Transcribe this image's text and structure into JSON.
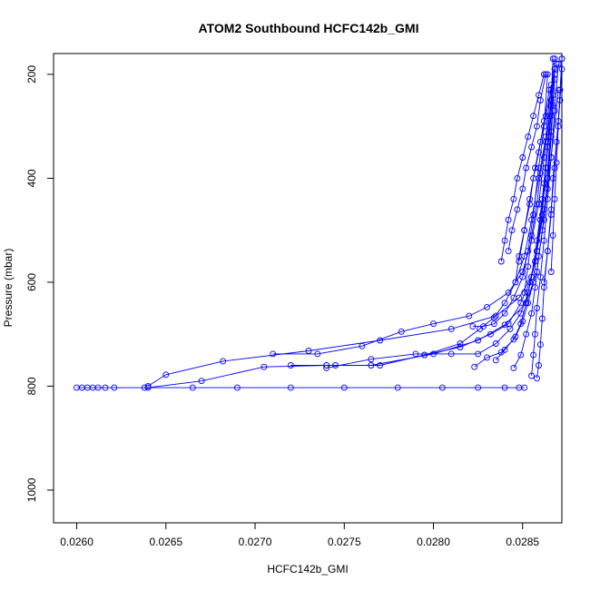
{
  "chart_data": {
    "type": "line",
    "title": "ATOM2 Southbound HCFC142b_GMI",
    "xlabel": "HCFC142b_GMI",
    "ylabel": "Pressure (mbar)",
    "xlim": [
      0.02587,
      0.02872
    ],
    "ylim": [
      1063,
      160
    ],
    "y_reversed": true,
    "x_ticks": [
      "0.0260",
      "0.0265",
      "0.0270",
      "0.0275",
      "0.0280",
      "0.0285"
    ],
    "x_tick_values": [
      0.026,
      0.0265,
      0.027,
      0.0275,
      0.028,
      0.0285
    ],
    "y_ticks": [
      "200",
      "400",
      "600",
      "800",
      "1000"
    ],
    "y_tick_values": [
      200,
      400,
      600,
      800,
      1000
    ],
    "marker": "open-circle",
    "color": "#0000ff",
    "series": [
      {
        "x": [
          0.026,
          0.02603,
          0.02606,
          0.02609,
          0.02612,
          0.02616,
          0.02621,
          0.02638,
          0.02665,
          0.0269,
          0.0272,
          0.0275,
          0.0278,
          0.02805,
          0.02825,
          0.0284,
          0.02848,
          0.02851
        ],
        "y": [
          803,
          803,
          803,
          803,
          803,
          803,
          803,
          803,
          803,
          803,
          803,
          803,
          803,
          803,
          803,
          803,
          803,
          803
        ]
      },
      {
        "x": [
          0.0264,
          0.0265,
          0.02682,
          0.0273,
          0.0277,
          0.0281,
          0.02835,
          0.02848,
          0.02855,
          0.02858,
          0.0286,
          0.02862,
          0.02864,
          0.02866,
          0.02867
        ],
        "y": [
          800,
          778,
          752,
          732,
          712,
          690,
          665,
          630,
          590,
          540,
          480,
          410,
          330,
          250,
          170
        ]
      },
      {
        "x": [
          0.0264,
          0.0267,
          0.02705,
          0.0274,
          0.02765,
          0.028,
          0.02825,
          0.0284,
          0.02852,
          0.02858,
          0.02861,
          0.02864,
          0.02866,
          0.02868
        ],
        "y": [
          803,
          790,
          763,
          760,
          760,
          738,
          712,
          682,
          640,
          580,
          500,
          420,
          320,
          200
        ]
      },
      {
        "x": [
          0.0271,
          0.02735,
          0.0276,
          0.02782,
          0.028,
          0.0282,
          0.0283,
          0.02842,
          0.0285,
          0.02855,
          0.02859,
          0.02862,
          0.02865,
          0.02868
        ],
        "y": [
          738,
          738,
          723,
          695,
          680,
          665,
          648,
          620,
          580,
          520,
          450,
          360,
          280,
          170
        ]
      },
      {
        "x": [
          0.0272,
          0.02745,
          0.0277,
          0.02795,
          0.02815,
          0.02832,
          0.02842,
          0.02849,
          0.02854,
          0.02858,
          0.02862,
          0.02866,
          0.0287
        ],
        "y": [
          760,
          760,
          760,
          740,
          725,
          700,
          680,
          640,
          600,
          540,
          460,
          360,
          230
        ]
      },
      {
        "x": [
          0.0274,
          0.02765,
          0.0279,
          0.0281,
          0.02825,
          0.02835,
          0.02843,
          0.02849,
          0.02853,
          0.02857,
          0.0286,
          0.02864,
          0.02867
        ],
        "y": [
          765,
          748,
          738,
          738,
          738,
          718,
          690,
          660,
          620,
          560,
          480,
          380,
          260
        ]
      },
      {
        "x": [
          0.02795,
          0.02815,
          0.02826,
          0.02834,
          0.0284,
          0.02846,
          0.02851,
          0.02855,
          0.02859,
          0.02863,
          0.02866
        ],
        "y": [
          740,
          718,
          690,
          668,
          640,
          600,
          550,
          480,
          400,
          320,
          220
        ]
      },
      {
        "x": [
          0.02822,
          0.02828,
          0.02834,
          0.0284,
          0.02845,
          0.0285,
          0.02853,
          0.02856,
          0.02859,
          0.02862,
          0.02864
        ],
        "y": [
          685,
          685,
          680,
          660,
          630,
          590,
          540,
          470,
          380,
          300,
          200
        ]
      },
      {
        "x": [
          0.02823,
          0.0283,
          0.02838,
          0.02845,
          0.02849,
          0.02852,
          0.02855,
          0.02858,
          0.02861,
          0.02864,
          0.02867
        ],
        "y": [
          763,
          745,
          735,
          710,
          680,
          640,
          590,
          520,
          440,
          340,
          240
        ]
      },
      {
        "x": [
          0.02835,
          0.0284,
          0.02846,
          0.0285,
          0.02853,
          0.02856,
          0.02858,
          0.02861,
          0.02863,
          0.02866
        ],
        "y": [
          750,
          730,
          705,
          675,
          640,
          600,
          540,
          470,
          380,
          280
        ]
      },
      {
        "x": [
          0.02845,
          0.02849,
          0.02852,
          0.02855,
          0.02857,
          0.02859,
          0.02862,
          0.02864,
          0.02866,
          0.02868
        ],
        "y": [
          765,
          740,
          700,
          660,
          610,
          550,
          480,
          400,
          310,
          210
        ]
      },
      {
        "x": [
          0.02855,
          0.02856,
          0.02857,
          0.02858,
          0.0286,
          0.02862,
          0.02864,
          0.02866,
          0.02868,
          0.0287
        ],
        "y": [
          780,
          740,
          700,
          650,
          590,
          520,
          440,
          360,
          270,
          180
        ]
      },
      {
        "x": [
          0.02858,
          0.02859,
          0.0286,
          0.02861,
          0.02862,
          0.02864,
          0.02866,
          0.02868,
          0.0287,
          0.02872
        ],
        "y": [
          785,
          760,
          720,
          670,
          610,
          540,
          460,
          380,
          290,
          190
        ]
      },
      {
        "x": [
          0.02838,
          0.0284,
          0.02842,
          0.02845,
          0.02847,
          0.0285,
          0.02853,
          0.02856,
          0.02859,
          0.02862
        ],
        "y": [
          560,
          520,
          480,
          440,
          400,
          360,
          320,
          280,
          240,
          200
        ]
      },
      {
        "x": [
          0.02842,
          0.02844,
          0.02847,
          0.0285,
          0.02852,
          0.02855,
          0.02858,
          0.0286,
          0.02863
        ],
        "y": [
          540,
          500,
          460,
          420,
          380,
          340,
          300,
          250,
          200
        ]
      },
      {
        "x": [
          0.02846,
          0.02848,
          0.02851,
          0.02854,
          0.02856,
          0.02859,
          0.02862,
          0.02865
        ],
        "y": [
          600,
          550,
          500,
          450,
          400,
          350,
          290,
          230
        ]
      },
      {
        "x": [
          0.02848,
          0.02851,
          0.02854,
          0.02857,
          0.0286,
          0.02863,
          0.02866,
          0.02869
        ],
        "y": [
          560,
          500,
          440,
          380,
          330,
          280,
          230,
          180
        ]
      },
      {
        "x": [
          0.02851,
          0.02853,
          0.02855,
          0.02858,
          0.0286,
          0.02863,
          0.02866,
          0.02868
        ],
        "y": [
          620,
          570,
          510,
          450,
          390,
          330,
          260,
          190
        ]
      },
      {
        "x": [
          0.02862,
          0.02864,
          0.02866,
          0.02867,
          0.02869,
          0.02871,
          0.02872
        ],
        "y": [
          600,
          540,
          470,
          400,
          330,
          250,
          170
        ]
      },
      {
        "x": [
          0.02866,
          0.02867,
          0.02868,
          0.02869,
          0.0287,
          0.02871,
          0.02872
        ],
        "y": [
          580,
          510,
          440,
          370,
          300,
          230,
          170
        ]
      }
    ]
  }
}
